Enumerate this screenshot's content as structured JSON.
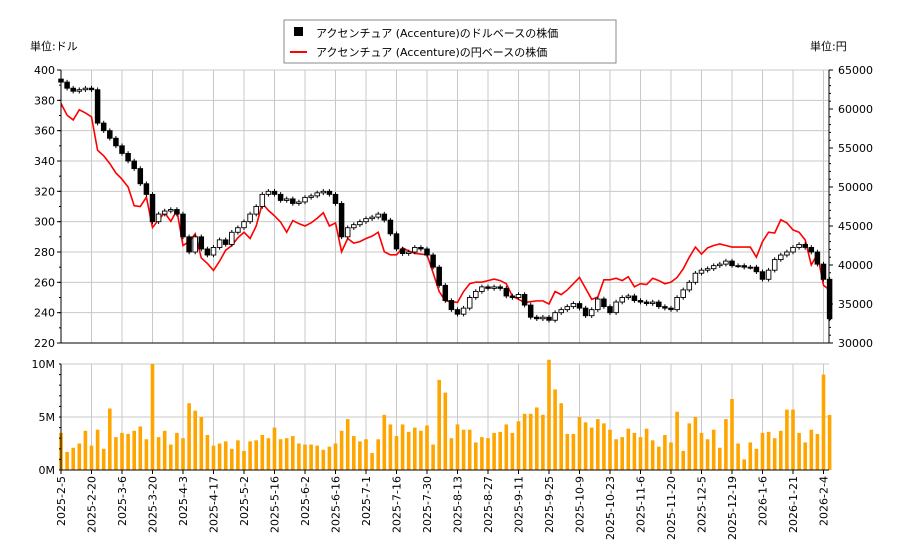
{
  "chart_data": [
    {
      "type": "candlestick+line",
      "legend": {
        "placement": "top-center",
        "entries": [
          {
            "label": "アクセンチュア (Accenture)のドルベースの株価",
            "color": "#000000",
            "marker": "square"
          },
          {
            "label": "アクセンチュア (Accenture)の円ベースの株価",
            "color": "#ff0000",
            "marker": "line"
          }
        ]
      },
      "left_unit": "単位:ドル",
      "right_unit": "単位:円",
      "ylim_left": [
        220,
        400
      ],
      "yticks_left": [
        "220",
        "240",
        "260",
        "280",
        "300",
        "320",
        "340",
        "360",
        "380",
        "400"
      ],
      "ylim_right": [
        30000,
        65000
      ],
      "yticks_right": [
        "30000",
        "35000",
        "40000",
        "45000",
        "50000",
        "55000",
        "60000",
        "65000"
      ],
      "grid": true,
      "usd_close": [
        392,
        388,
        386,
        387,
        388,
        387,
        365,
        360,
        355,
        350,
        345,
        340,
        335,
        325,
        318,
        300,
        305,
        307,
        308,
        305,
        290,
        280,
        290,
        282,
        278,
        283,
        288,
        285,
        293,
        296,
        300,
        305,
        310,
        318,
        320,
        318,
        314,
        315,
        312,
        313,
        316,
        317,
        319,
        320,
        318,
        312,
        290,
        296,
        298,
        300,
        302,
        303,
        305,
        301,
        292,
        282,
        279,
        280,
        283,
        282,
        278,
        270,
        258,
        248,
        242,
        239,
        243,
        250,
        254,
        257,
        256,
        257,
        256,
        251,
        250,
        252,
        245,
        237,
        236,
        237,
        235,
        240,
        242,
        244,
        246,
        243,
        238,
        242,
        249,
        244,
        240,
        247,
        250,
        251,
        248,
        247,
        246,
        247,
        244,
        243,
        242,
        250,
        255,
        260,
        266,
        268,
        269,
        271,
        272,
        274,
        271,
        271,
        270,
        270,
        267,
        262,
        268,
        275,
        278,
        280,
        283,
        285,
        283,
        280,
        272,
        262,
        236
      ],
      "jpy_price": [
        60700,
        59200,
        58600,
        59900,
        59500,
        59000,
        54700,
        54000,
        53000,
        51800,
        51000,
        50000,
        47600,
        47500,
        48700,
        44800,
        45800,
        46700,
        45600,
        47000,
        42500,
        43000,
        44000,
        40900,
        40200,
        39300,
        40500,
        41900,
        42500,
        43500,
        44200,
        43400,
        45000,
        47900,
        47000,
        46300,
        45500,
        44200,
        45700,
        45300,
        45000,
        45400,
        46000,
        46700,
        45000,
        45400,
        41700,
        43400,
        42800,
        43000,
        43400,
        43700,
        44200,
        41700,
        41300,
        41300,
        42200,
        41800,
        41500,
        41400,
        41300,
        39000,
        36600,
        35400,
        35300,
        35200,
        36600,
        37600,
        37800,
        37800,
        38000,
        38200,
        38000,
        37600,
        36000,
        35600,
        35200,
        35300,
        35400,
        35400,
        35000,
        36600,
        36200,
        36800,
        37600,
        38400,
        37000,
        35600,
        35900,
        38100,
        38100,
        38300,
        38000,
        38500,
        37200,
        37600,
        37500,
        38300,
        38000,
        37600,
        37800,
        38400,
        39500,
        41000,
        42300,
        41400,
        42200,
        42500,
        42700,
        42500,
        42300,
        42300,
        42300,
        42300,
        41000,
        43000,
        44200,
        44100,
        45800,
        45400,
        44500,
        44200,
        43200,
        40000,
        41400,
        37400,
        36800
      ]
    },
    {
      "type": "bar",
      "color": "#ffa500",
      "ylim": [
        0,
        10
      ],
      "yticks": [
        "0M",
        "5M",
        "10M"
      ],
      "grid": true,
      "volume_millions": [
        3.5,
        1.7,
        2.1,
        2.5,
        3.7,
        2.3,
        3.8,
        2.0,
        5.8,
        3.1,
        3.5,
        3.4,
        3.7,
        4.1,
        2.9,
        10.0,
        3.1,
        3.7,
        2.4,
        3.5,
        3.0,
        6.3,
        5.6,
        5.0,
        3.3,
        2.3,
        2.5,
        2.7,
        2.0,
        2.8,
        1.8,
        2.7,
        2.8,
        3.3,
        3.0,
        4.0,
        2.9,
        3.0,
        3.2,
        2.5,
        2.4,
        2.4,
        2.3,
        1.9,
        2.2,
        2.5,
        3.7,
        4.8,
        3.2,
        2.7,
        2.9,
        1.6,
        2.9,
        5.2,
        4.3,
        3.2,
        4.3,
        3.6,
        4.0,
        3.7,
        4.2,
        2.4,
        8.5,
        7.3,
        3.0,
        4.3,
        3.8,
        3.8,
        2.6,
        3.1,
        3.0,
        3.5,
        3.6,
        4.3,
        3.5,
        4.6,
        5.3,
        5.3,
        5.9,
        5.2,
        10.4,
        7.6,
        6.3,
        3.4,
        3.4,
        5.0,
        4.5,
        4.0,
        4.8,
        4.4,
        3.8,
        2.9,
        3.1,
        3.9,
        3.5,
        3.1,
        3.9,
        2.8,
        2.2,
        3.3,
        2.6,
        5.5,
        1.8,
        4.4,
        5.0,
        3.5,
        2.9,
        3.8,
        2.1,
        4.8,
        6.7,
        2.5,
        1.0,
        2.6,
        2.0,
        3.5,
        3.6,
        3.0,
        3.7,
        5.7,
        5.7,
        3.5,
        2.6,
        3.8,
        3.4,
        9.0,
        5.2
      ]
    }
  ],
  "x_tick_labels": [
    "2025-2-5",
    "2025-2-20",
    "2025-3-6",
    "2025-3-20",
    "2025-4-3",
    "2025-4-17",
    "2025-5-2",
    "2025-5-16",
    "2025-6-2",
    "2025-6-16",
    "2025-7-1",
    "2025-7-16",
    "2025-7-30",
    "2025-8-13",
    "2025-8-27",
    "2025-9-11",
    "2025-9-25",
    "2025-10-9",
    "2025-10-23",
    "2025-11-6",
    "2025-11-20",
    "2025-12-5",
    "2025-12-19",
    "2026-1-6",
    "2026-1-21",
    "2026-2-4"
  ]
}
